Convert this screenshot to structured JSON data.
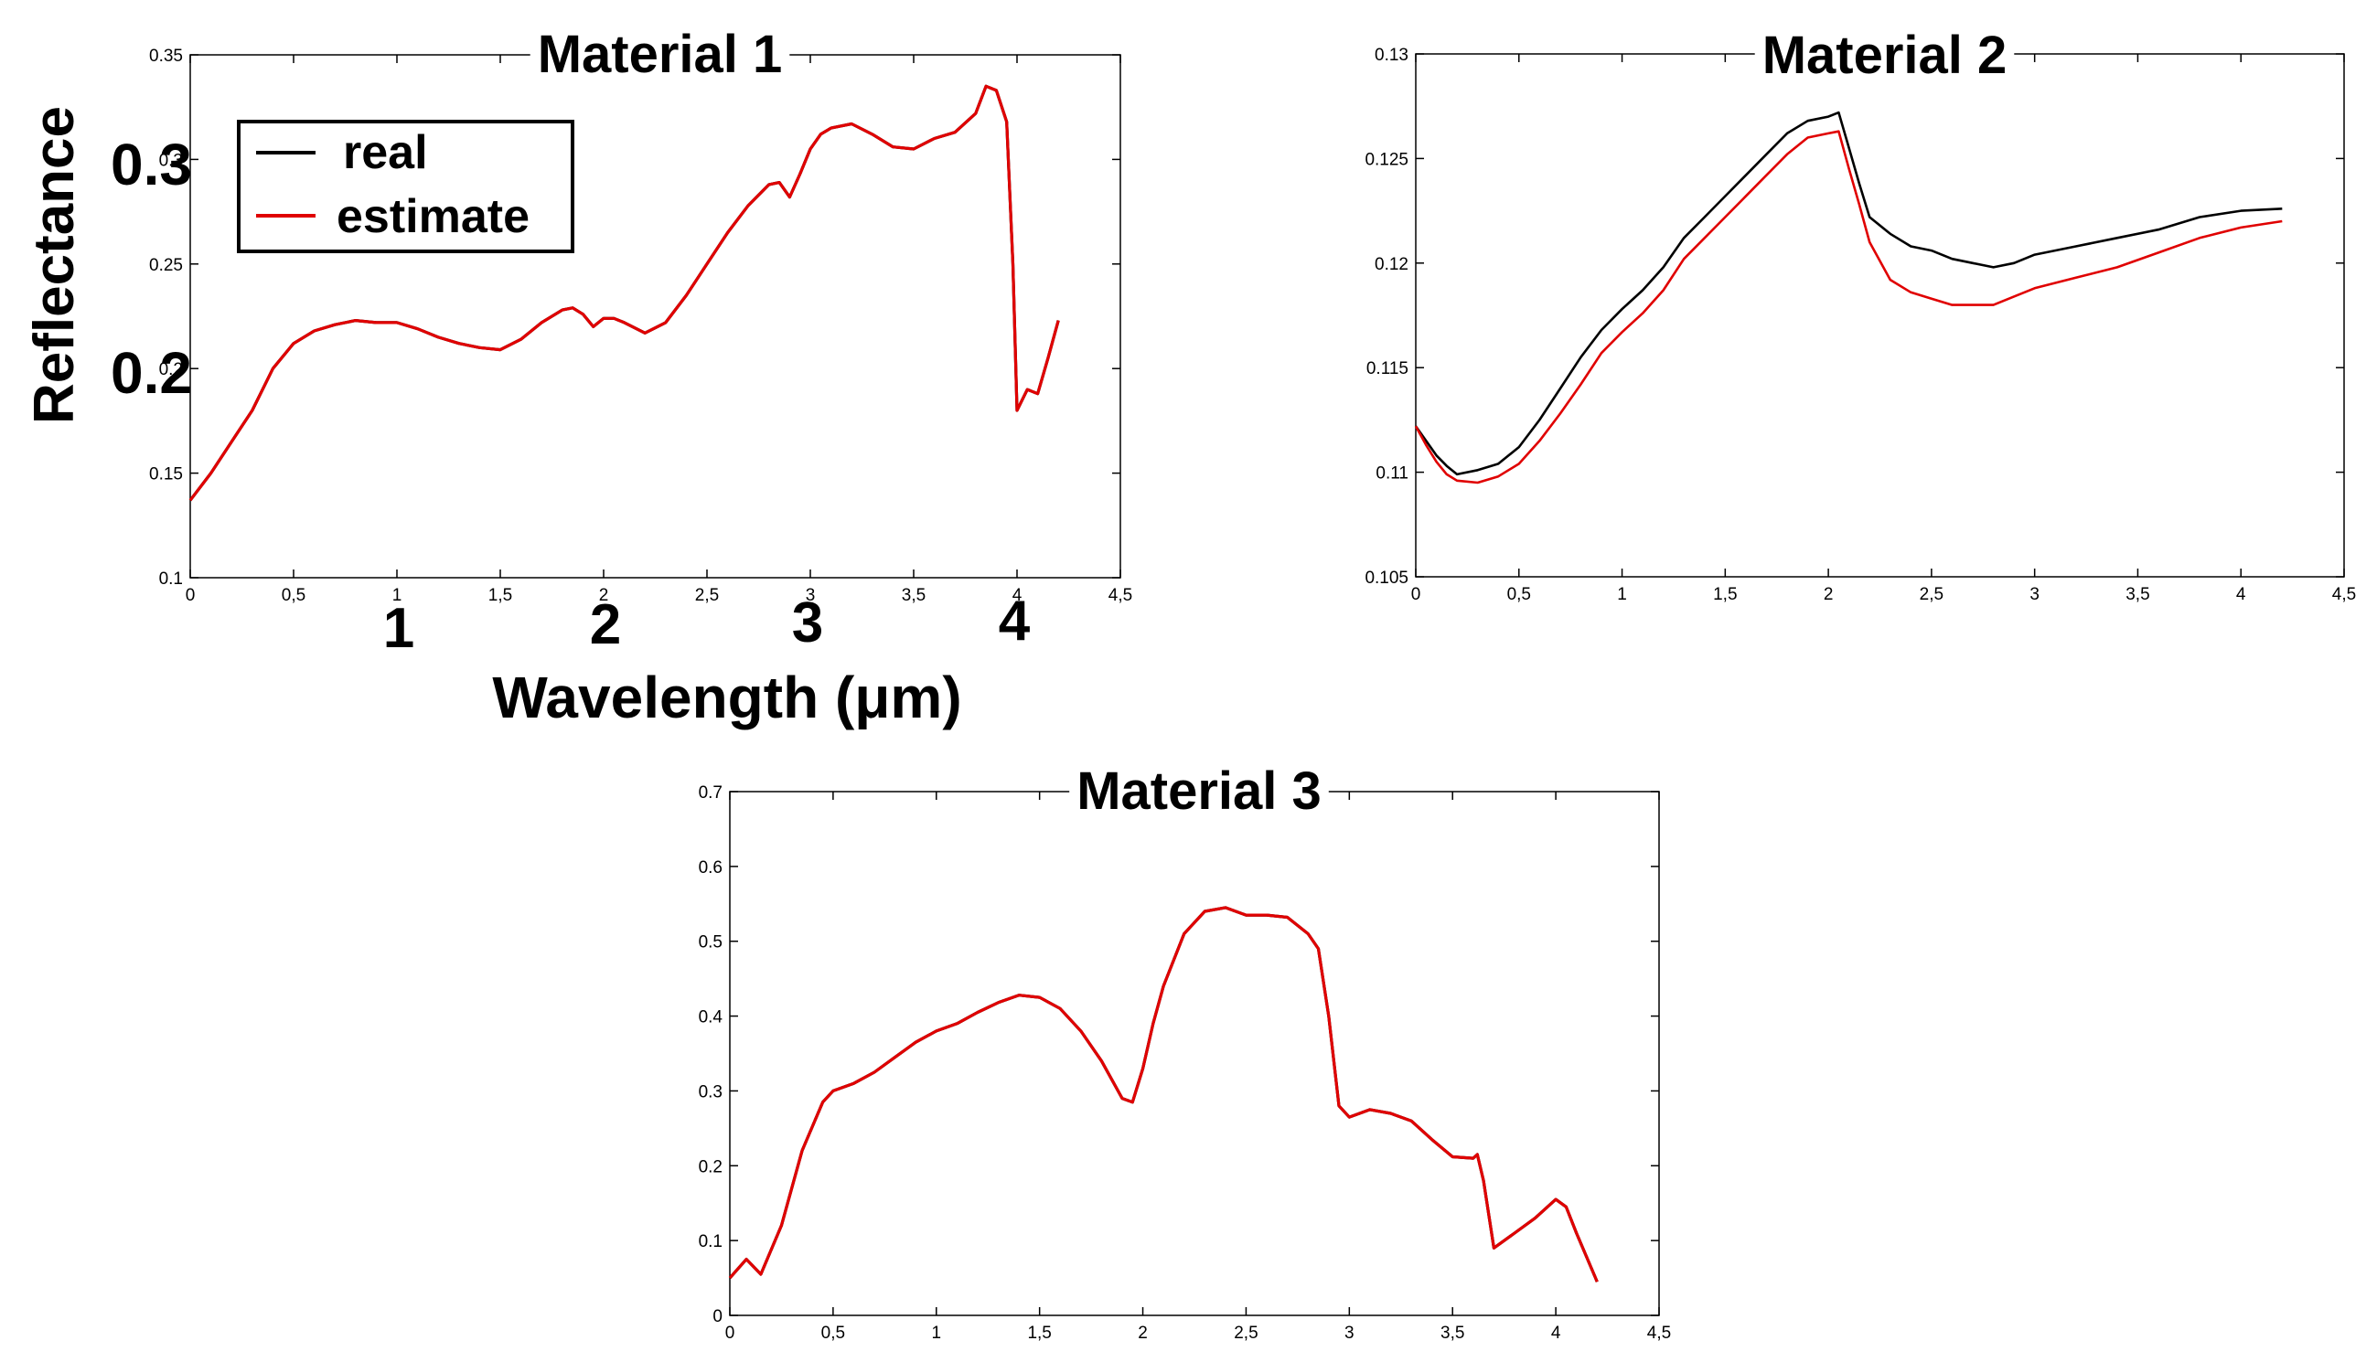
{
  "ylabel": "Reflectance",
  "xlabel": "Wavelength (μm)",
  "xlabel_ticks": [
    "1",
    "2",
    "3",
    "4"
  ],
  "ylabel_ticks": [
    "0.3",
    "0.2"
  ],
  "legend": {
    "real": "real",
    "estimate": "estimate"
  },
  "colors": {
    "real": "#000000",
    "estimate": "#e00000"
  },
  "chart_data": [
    {
      "type": "line",
      "title": "Material 1",
      "xlim": [
        0,
        4.5
      ],
      "ylim": [
        0.1,
        0.35
      ],
      "xticks": [
        "0",
        "0,5",
        "1",
        "1,5",
        "2",
        "2,5",
        "3",
        "3,5",
        "4",
        "4,5"
      ],
      "yticks": [
        "0.1",
        "0.15",
        "0.2",
        "0.25",
        "0.3",
        "0.35"
      ],
      "series": [
        {
          "name": "real",
          "x": [
            0,
            0.1,
            0.2,
            0.3,
            0.4,
            0.5,
            0.6,
            0.7,
            0.8,
            0.9,
            1.0,
            1.1,
            1.2,
            1.3,
            1.4,
            1.5,
            1.6,
            1.7,
            1.8,
            1.85,
            1.9,
            1.95,
            2.0,
            2.05,
            2.1,
            2.2,
            2.3,
            2.4,
            2.5,
            2.6,
            2.7,
            2.8,
            2.85,
            2.9,
            2.95,
            3.0,
            3.05,
            3.1,
            3.2,
            3.3,
            3.4,
            3.5,
            3.6,
            3.7,
            3.8,
            3.85,
            3.9,
            3.95,
            3.98,
            4.0,
            4.05,
            4.1,
            4.15,
            4.2
          ],
          "values": [
            0.137,
            0.15,
            0.165,
            0.18,
            0.2,
            0.212,
            0.218,
            0.221,
            0.223,
            0.222,
            0.222,
            0.219,
            0.215,
            0.212,
            0.21,
            0.209,
            0.214,
            0.222,
            0.228,
            0.229,
            0.226,
            0.22,
            0.224,
            0.224,
            0.222,
            0.217,
            0.222,
            0.235,
            0.25,
            0.265,
            0.278,
            0.288,
            0.289,
            0.282,
            0.293,
            0.305,
            0.312,
            0.315,
            0.317,
            0.312,
            0.306,
            0.305,
            0.31,
            0.313,
            0.322,
            0.335,
            0.333,
            0.318,
            0.25,
            0.18,
            0.19,
            0.188,
            0.205,
            0.223
          ]
        },
        {
          "name": "estimate",
          "x": [
            0,
            0.1,
            0.2,
            0.3,
            0.4,
            0.5,
            0.6,
            0.7,
            0.8,
            0.9,
            1.0,
            1.1,
            1.2,
            1.3,
            1.4,
            1.5,
            1.6,
            1.7,
            1.8,
            1.85,
            1.9,
            1.95,
            2.0,
            2.05,
            2.1,
            2.2,
            2.3,
            2.4,
            2.5,
            2.6,
            2.7,
            2.8,
            2.85,
            2.9,
            2.95,
            3.0,
            3.05,
            3.1,
            3.2,
            3.3,
            3.4,
            3.5,
            3.6,
            3.7,
            3.8,
            3.85,
            3.9,
            3.95,
            3.98,
            4.0,
            4.05,
            4.1,
            4.15,
            4.2
          ],
          "values": [
            0.137,
            0.15,
            0.165,
            0.18,
            0.2,
            0.212,
            0.218,
            0.221,
            0.223,
            0.222,
            0.222,
            0.219,
            0.215,
            0.212,
            0.21,
            0.209,
            0.214,
            0.222,
            0.228,
            0.229,
            0.226,
            0.22,
            0.224,
            0.224,
            0.222,
            0.217,
            0.222,
            0.235,
            0.25,
            0.265,
            0.278,
            0.288,
            0.289,
            0.282,
            0.293,
            0.305,
            0.312,
            0.315,
            0.317,
            0.312,
            0.306,
            0.305,
            0.31,
            0.313,
            0.322,
            0.335,
            0.333,
            0.318,
            0.25,
            0.18,
            0.19,
            0.188,
            0.205,
            0.223
          ]
        }
      ]
    },
    {
      "type": "line",
      "title": "Material 2",
      "xlim": [
        0,
        4.5
      ],
      "ylim": [
        0.105,
        0.13
      ],
      "xticks": [
        "0",
        "0,5",
        "1",
        "1,5",
        "2",
        "2,5",
        "3",
        "3,5",
        "4",
        "4,5"
      ],
      "yticks": [
        "0.105",
        "0.11",
        "0.115",
        "0.12",
        "0.125",
        "0.13"
      ],
      "series": [
        {
          "name": "real",
          "x": [
            0,
            0.05,
            0.1,
            0.15,
            0.2,
            0.3,
            0.4,
            0.5,
            0.6,
            0.7,
            0.8,
            0.9,
            1.0,
            1.1,
            1.2,
            1.3,
            1.4,
            1.5,
            1.6,
            1.7,
            1.8,
            1.9,
            2.0,
            2.05,
            2.1,
            2.15,
            2.2,
            2.3,
            2.4,
            2.5,
            2.6,
            2.7,
            2.8,
            2.9,
            3.0,
            3.2,
            3.4,
            3.6,
            3.8,
            4.0,
            4.2
          ],
          "values": [
            0.1122,
            0.1115,
            0.1108,
            0.1103,
            0.1099,
            0.1101,
            0.1104,
            0.1112,
            0.1125,
            0.114,
            0.1155,
            0.1168,
            0.1178,
            0.1187,
            0.1198,
            0.1212,
            0.1222,
            0.1232,
            0.1242,
            0.1252,
            0.1262,
            0.1268,
            0.127,
            0.1272,
            0.1255,
            0.1238,
            0.1222,
            0.1214,
            0.1208,
            0.1206,
            0.1202,
            0.12,
            0.1198,
            0.12,
            0.1204,
            0.1208,
            0.1212,
            0.1216,
            0.1222,
            0.1225,
            0.1226
          ]
        },
        {
          "name": "estimate",
          "x": [
            0,
            0.05,
            0.1,
            0.15,
            0.2,
            0.3,
            0.4,
            0.5,
            0.6,
            0.7,
            0.8,
            0.9,
            1.0,
            1.1,
            1.2,
            1.3,
            1.4,
            1.5,
            1.6,
            1.7,
            1.8,
            1.9,
            2.0,
            2.05,
            2.1,
            2.15,
            2.2,
            2.3,
            2.4,
            2.5,
            2.6,
            2.7,
            2.8,
            2.9,
            3.0,
            3.2,
            3.4,
            3.6,
            3.8,
            4.0,
            4.2
          ],
          "values": [
            0.1122,
            0.1113,
            0.1105,
            0.1099,
            0.1096,
            0.1095,
            0.1098,
            0.1104,
            0.1115,
            0.1128,
            0.1142,
            0.1157,
            0.1167,
            0.1176,
            0.1187,
            0.1202,
            0.1212,
            0.1222,
            0.1232,
            0.1242,
            0.1252,
            0.126,
            0.1262,
            0.1263,
            0.1245,
            0.1228,
            0.121,
            0.1192,
            0.1186,
            0.1183,
            0.118,
            0.118,
            0.118,
            0.1184,
            0.1188,
            0.1193,
            0.1198,
            0.1205,
            0.1212,
            0.1217,
            0.122
          ]
        }
      ]
    },
    {
      "type": "line",
      "title": "Material 3",
      "xlim": [
        0,
        4.5
      ],
      "ylim": [
        0,
        0.7
      ],
      "xticks": [
        "0",
        "0,5",
        "1",
        "1,5",
        "2",
        "2,5",
        "3",
        "3,5",
        "4",
        "4,5"
      ],
      "yticks": [
        "0",
        "0.1",
        "0.2",
        "0.3",
        "0.4",
        "0.5",
        "0.6",
        "0.7"
      ],
      "series": [
        {
          "name": "real",
          "x": [
            0,
            0.08,
            0.15,
            0.25,
            0.35,
            0.45,
            0.5,
            0.6,
            0.7,
            0.8,
            0.9,
            1.0,
            1.1,
            1.2,
            1.3,
            1.4,
            1.5,
            1.6,
            1.7,
            1.8,
            1.9,
            1.95,
            2.0,
            2.05,
            2.1,
            2.2,
            2.3,
            2.4,
            2.5,
            2.6,
            2.7,
            2.8,
            2.85,
            2.9,
            2.95,
            3.0,
            3.1,
            3.2,
            3.3,
            3.4,
            3.5,
            3.6,
            3.62,
            3.65,
            3.7,
            3.8,
            3.9,
            4.0,
            4.05,
            4.1,
            4.2
          ],
          "values": [
            0.05,
            0.075,
            0.055,
            0.12,
            0.22,
            0.285,
            0.3,
            0.31,
            0.325,
            0.345,
            0.365,
            0.38,
            0.39,
            0.405,
            0.418,
            0.428,
            0.425,
            0.41,
            0.38,
            0.34,
            0.29,
            0.285,
            0.33,
            0.39,
            0.44,
            0.51,
            0.54,
            0.545,
            0.535,
            0.535,
            0.532,
            0.51,
            0.49,
            0.4,
            0.28,
            0.265,
            0.275,
            0.27,
            0.26,
            0.235,
            0.212,
            0.21,
            0.215,
            0.18,
            0.09,
            0.11,
            0.13,
            0.155,
            0.145,
            0.11,
            0.045
          ]
        },
        {
          "name": "estimate",
          "x": [
            0,
            0.08,
            0.15,
            0.25,
            0.35,
            0.45,
            0.5,
            0.6,
            0.7,
            0.8,
            0.9,
            1.0,
            1.1,
            1.2,
            1.3,
            1.4,
            1.5,
            1.6,
            1.7,
            1.8,
            1.9,
            1.95,
            2.0,
            2.05,
            2.1,
            2.2,
            2.3,
            2.4,
            2.5,
            2.6,
            2.7,
            2.8,
            2.85,
            2.9,
            2.95,
            3.0,
            3.1,
            3.2,
            3.3,
            3.4,
            3.5,
            3.6,
            3.62,
            3.65,
            3.7,
            3.8,
            3.9,
            4.0,
            4.05,
            4.1,
            4.2
          ],
          "values": [
            0.05,
            0.075,
            0.055,
            0.12,
            0.22,
            0.285,
            0.3,
            0.31,
            0.325,
            0.345,
            0.365,
            0.38,
            0.39,
            0.405,
            0.418,
            0.428,
            0.425,
            0.41,
            0.38,
            0.34,
            0.29,
            0.285,
            0.33,
            0.39,
            0.44,
            0.51,
            0.54,
            0.545,
            0.535,
            0.535,
            0.532,
            0.51,
            0.49,
            0.4,
            0.28,
            0.265,
            0.275,
            0.27,
            0.26,
            0.235,
            0.212,
            0.21,
            0.215,
            0.18,
            0.09,
            0.11,
            0.13,
            0.155,
            0.145,
            0.11,
            0.045
          ]
        }
      ]
    }
  ]
}
